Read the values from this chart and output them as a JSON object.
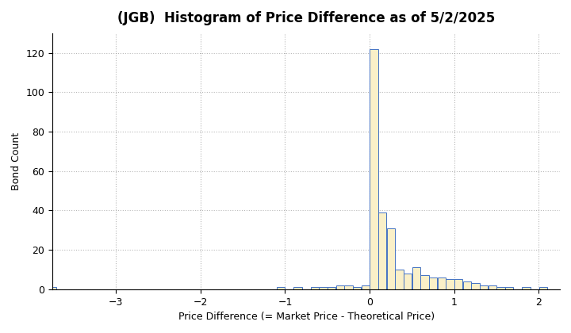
{
  "title": "(JGB)  Histogram of Price Difference as of 5/2/2025",
  "xlabel": "Price Difference (= Market Price - Theoretical Price)",
  "ylabel": "Bond Count",
  "xlim": [
    -3.75,
    2.25
  ],
  "ylim": [
    0,
    130
  ],
  "yticks": [
    0,
    20,
    40,
    60,
    80,
    100,
    120
  ],
  "xticks": [
    -3,
    -2,
    -1,
    0,
    1,
    2
  ],
  "bar_color": "#FAF0C8",
  "edge_color": "#4472C4",
  "bin_width": 0.1,
  "bin_centers": [
    -3.75,
    -3.65,
    -3.55,
    -3.45,
    -3.35,
    -3.25,
    -3.15,
    -3.05,
    -2.95,
    -2.85,
    -2.75,
    -2.65,
    -2.55,
    -2.45,
    -2.35,
    -2.25,
    -2.15,
    -2.05,
    -1.95,
    -1.85,
    -1.75,
    -1.65,
    -1.55,
    -1.45,
    -1.35,
    -1.25,
    -1.15,
    -1.05,
    -0.95,
    -0.85,
    -0.75,
    -0.65,
    -0.55,
    -0.45,
    -0.35,
    -0.25,
    -0.15,
    -0.05,
    0.05,
    0.15,
    0.25,
    0.35,
    0.45,
    0.55,
    0.65,
    0.75,
    0.85,
    0.95,
    1.05,
    1.15,
    1.25,
    1.35,
    1.45,
    1.55,
    1.65,
    1.75,
    1.85,
    1.95,
    2.05,
    2.15
  ],
  "counts": [
    1,
    0,
    0,
    0,
    0,
    0,
    0,
    0,
    0,
    0,
    0,
    0,
    0,
    0,
    0,
    0,
    0,
    0,
    0,
    0,
    0,
    0,
    0,
    0,
    0,
    0,
    0,
    1,
    0,
    1,
    0,
    1,
    1,
    1,
    2,
    2,
    1,
    2,
    122,
    39,
    31,
    10,
    8,
    11,
    7,
    6,
    6,
    5,
    5,
    4,
    3,
    2,
    2,
    1,
    1,
    0,
    1,
    0,
    1,
    0
  ],
  "background_color": "#ffffff",
  "grid_color": "#888888",
  "title_fontsize": 12,
  "label_fontsize": 9,
  "tick_fontsize": 9
}
